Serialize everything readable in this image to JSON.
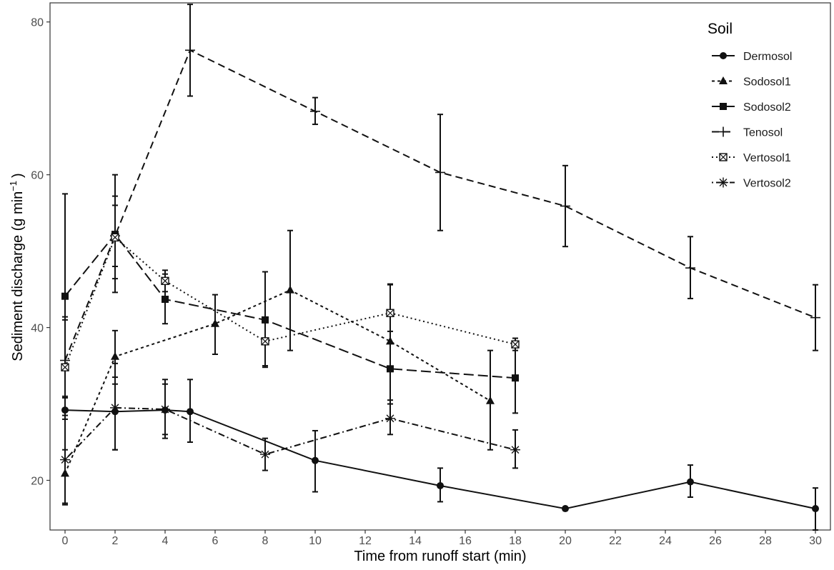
{
  "chart_data": {
    "type": "line",
    "xlabel": "Time from runoff start (min)",
    "ylabel": "Sediment discharge (g min",
    "ylabel_sup": "−1",
    "ylabel_close": ")",
    "xlim": [
      -0.6,
      30.6
    ],
    "ylim": [
      13.5,
      82.5
    ],
    "xticks": [
      0,
      2,
      4,
      6,
      8,
      10,
      12,
      14,
      16,
      18,
      20,
      22,
      24,
      26,
      28,
      30
    ],
    "yticks": [
      20,
      40,
      60,
      80
    ],
    "grid": false,
    "legend_title": "Soil",
    "legend_position": "top-right",
    "series": [
      {
        "name": "Dermosol",
        "line": "solid",
        "marker": "circle",
        "points": [
          {
            "x": 0,
            "y": 29.2,
            "lo": 16.8,
            "hi": 41.0
          },
          {
            "x": 2,
            "y": 29.0,
            "lo": 24.0,
            "hi": 33.5
          },
          {
            "x": 4,
            "y": 29.2,
            "lo": 25.5,
            "hi": 33.2
          },
          {
            "x": 5,
            "y": 29.0,
            "lo": 25.0,
            "hi": 33.2
          },
          {
            "x": 10,
            "y": 22.6,
            "lo": 18.5,
            "hi": 26.5
          },
          {
            "x": 15,
            "y": 19.3,
            "lo": 17.2,
            "hi": 21.6
          },
          {
            "x": 20,
            "y": 16.3
          },
          {
            "x": 25,
            "y": 19.8,
            "lo": 17.8,
            "hi": 22.0
          },
          {
            "x": 30,
            "y": 16.3,
            "lo": 13.5,
            "hi": 19.0
          }
        ]
      },
      {
        "name": "Sodosol1",
        "line": "dashed-short",
        "marker": "triangle",
        "points": [
          {
            "x": 0,
            "y": 20.9,
            "lo": 17.0,
            "hi": 31.0
          },
          {
            "x": 2,
            "y": 36.2,
            "lo": 32.6,
            "hi": 39.6
          },
          {
            "x": 6,
            "y": 40.5,
            "lo": 36.5,
            "hi": 44.3
          },
          {
            "x": 9,
            "y": 44.9,
            "lo": 37.0,
            "hi": 52.7
          },
          {
            "x": 13,
            "y": 38.2,
            "lo": 30.5,
            "hi": 45.7
          },
          {
            "x": 17,
            "y": 30.4,
            "lo": 24.0,
            "hi": 37.0
          }
        ]
      },
      {
        "name": "Sodosol2",
        "line": "dashed-long",
        "marker": "square",
        "points": [
          {
            "x": 0,
            "y": 44.1,
            "lo": 30.8,
            "hi": 57.5
          },
          {
            "x": 2,
            "y": 52.2,
            "lo": 44.6,
            "hi": 60.0
          },
          {
            "x": 4,
            "y": 43.7,
            "lo": 40.5,
            "hi": 47.0
          },
          {
            "x": 8,
            "y": 41.0,
            "lo": 34.8,
            "hi": 47.3
          },
          {
            "x": 13,
            "y": 34.6,
            "lo": 30.0,
            "hi": 39.5
          },
          {
            "x": 18,
            "y": 33.4,
            "lo": 28.8,
            "hi": 37.7
          }
        ]
      },
      {
        "name": "Tenosol",
        "line": "dashed",
        "marker": "plus",
        "points": [
          {
            "x": 0,
            "y": 35.7,
            "lo": 24.0,
            "hi": 44.0
          },
          {
            "x": 2,
            "y": 52.0,
            "lo": 48.0,
            "hi": 56.0
          },
          {
            "x": 5,
            "y": 76.3,
            "lo": 70.3,
            "hi": 82.3
          },
          {
            "x": 10,
            "y": 68.3,
            "lo": 66.6,
            "hi": 70.1
          },
          {
            "x": 15,
            "y": 60.3,
            "lo": 52.7,
            "hi": 67.9
          },
          {
            "x": 20,
            "y": 55.9,
            "lo": 50.6,
            "hi": 61.2
          },
          {
            "x": 25,
            "y": 47.8,
            "lo": 43.8,
            "hi": 51.9
          },
          {
            "x": 30,
            "y": 41.3,
            "lo": 37.0,
            "hi": 45.6
          }
        ]
      },
      {
        "name": "Vertosol1",
        "line": "dotted",
        "marker": "boxcross",
        "points": [
          {
            "x": 0,
            "y": 34.8,
            "lo": 28.0,
            "hi": 41.4
          },
          {
            "x": 2,
            "y": 51.8,
            "lo": 46.4,
            "hi": 57.2
          },
          {
            "x": 4,
            "y": 46.1,
            "lo": 44.7,
            "hi": 47.5
          },
          {
            "x": 8,
            "y": 38.2,
            "lo": 35.0,
            "hi": 41.3
          },
          {
            "x": 13,
            "y": 41.9,
            "lo": 38.0,
            "hi": 45.6
          },
          {
            "x": 18,
            "y": 37.8,
            "lo": 37.0,
            "hi": 38.6
          }
        ]
      },
      {
        "name": "Vertosol2",
        "line": "dotdash",
        "marker": "asterisk",
        "points": [
          {
            "x": 0,
            "y": 22.7,
            "lo": 17.0,
            "hi": 28.5
          },
          {
            "x": 2,
            "y": 29.5,
            "lo": 24.0,
            "hi": 35.3
          },
          {
            "x": 4,
            "y": 29.3,
            "lo": 26.0,
            "hi": 32.6
          },
          {
            "x": 8,
            "y": 23.4,
            "lo": 21.3,
            "hi": 25.5
          },
          {
            "x": 13,
            "y": 28.1,
            "lo": 26.0,
            "hi": 30.0
          },
          {
            "x": 18,
            "y": 24.0,
            "lo": 21.6,
            "hi": 26.6
          }
        ]
      }
    ]
  }
}
